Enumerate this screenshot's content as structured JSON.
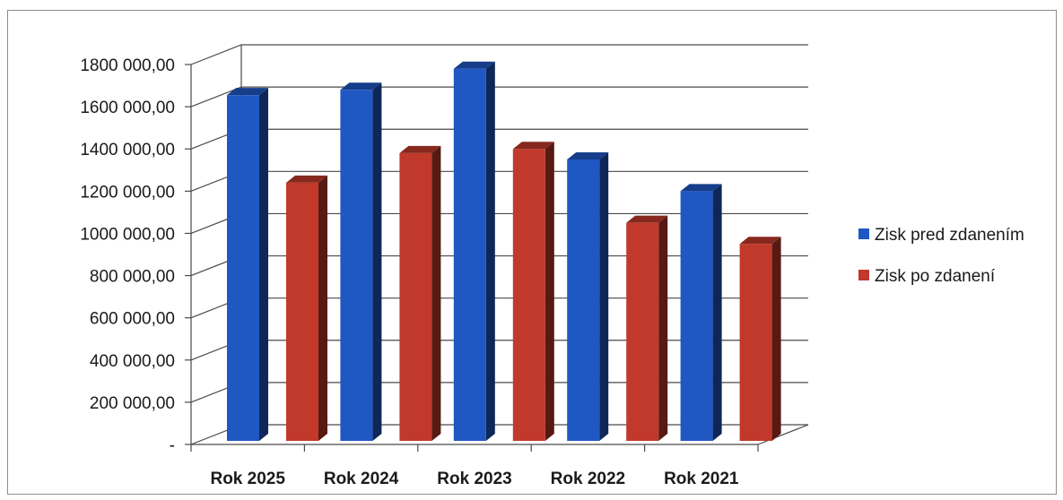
{
  "chart_data": {
    "type": "bar",
    "title": "",
    "xlabel": "",
    "ylabel": "",
    "categories": [
      "Rok 2025",
      "Rok 2024",
      "Rok 2023",
      "Rok 2022",
      "Rok 2021"
    ],
    "series": [
      {
        "name": "Zisk pred zdanením",
        "color": "#1f57c3",
        "values": [
          1655000,
          1680000,
          1780000,
          1350000,
          1200000
        ]
      },
      {
        "name": "Zisk po zdanení",
        "color": "#c0392b",
        "values": [
          1240000,
          1380000,
          1400000,
          1050000,
          950000
        ]
      }
    ],
    "ylim": [
      0,
      1800000
    ],
    "yticks": [
      {
        "value": 0,
        "label": "-"
      },
      {
        "value": 200000,
        "label": "200 000,00"
      },
      {
        "value": 400000,
        "label": "400 000,00"
      },
      {
        "value": 600000,
        "label": "600 000,00"
      },
      {
        "value": 800000,
        "label": "800 000,00"
      },
      {
        "value": 1000000,
        "label": "1000 000,00"
      },
      {
        "value": 1200000,
        "label": "1200 000,00"
      },
      {
        "value": 1400000,
        "label": "1400 000,00"
      },
      {
        "value": 1600000,
        "label": "1600 000,00"
      },
      {
        "value": 1800000,
        "label": "1800 000,00"
      }
    ],
    "chart_style": "3d-clustered-column",
    "grid": true,
    "legend_position": "right"
  }
}
